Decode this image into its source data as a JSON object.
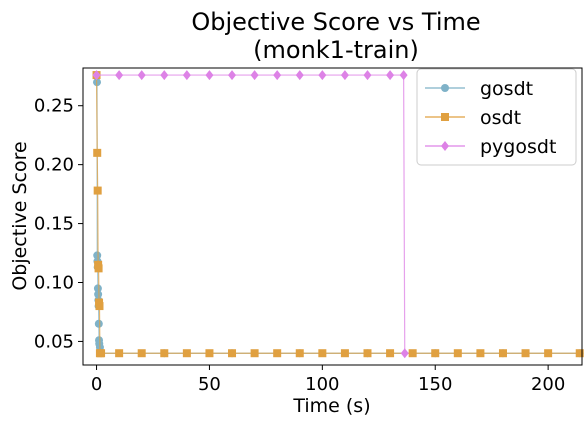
{
  "chart_data": {
    "type": "line",
    "title": [
      "Objective Score vs Time",
      "(monk1-train)"
    ],
    "xlabel": "Time (s)",
    "ylabel": "Objective Score",
    "xlim": [
      -6,
      215
    ],
    "ylim": [
      0.03,
      0.282
    ],
    "xticks": [
      0,
      50,
      100,
      150,
      200
    ],
    "yticks": [
      0.05,
      0.1,
      0.15,
      0.2,
      0.25
    ],
    "grid": false,
    "legend_position": "top-right",
    "series": [
      {
        "name": "gosdt",
        "color": "#7fb2c8",
        "marker": "circle",
        "x": [
          0,
          0.2,
          0.3,
          0.4,
          0.5,
          0.6,
          0.7,
          0.8,
          0.9,
          1.0,
          1.1,
          1.2,
          1.5,
          2.0,
          30,
          60,
          90,
          120,
          150,
          180,
          214
        ],
        "y": [
          0.276,
          0.27,
          0.123,
          0.118,
          0.113,
          0.095,
          0.09,
          0.085,
          0.08,
          0.065,
          0.051,
          0.048,
          0.045,
          0.04,
          0.04,
          0.04,
          0.04,
          0.04,
          0.04,
          0.04,
          0.04
        ]
      },
      {
        "name": "osdt",
        "color": "#e0a040",
        "marker": "square",
        "x": [
          0,
          0.3,
          0.5,
          0.7,
          0.9,
          1.1,
          1.3,
          1.5,
          2,
          10,
          20,
          30,
          40,
          50,
          60,
          70,
          80,
          90,
          100,
          110,
          120,
          130,
          140,
          150,
          160,
          170,
          180,
          190,
          200,
          214
        ],
        "y": [
          0.276,
          0.21,
          0.178,
          0.115,
          0.112,
          0.083,
          0.08,
          0.04,
          0.04,
          0.04,
          0.04,
          0.04,
          0.04,
          0.04,
          0.04,
          0.04,
          0.04,
          0.04,
          0.04,
          0.04,
          0.04,
          0.04,
          0.04,
          0.04,
          0.04,
          0.04,
          0.04,
          0.04,
          0.04,
          0.04
        ]
      },
      {
        "name": "pygosdt",
        "color": "#dd82e6",
        "marker": "diamond",
        "x": [
          0,
          10,
          20,
          30,
          40,
          50,
          60,
          70,
          80,
          90,
          100,
          110,
          120,
          130,
          136,
          136.5
        ],
        "y": [
          0.276,
          0.276,
          0.276,
          0.276,
          0.276,
          0.276,
          0.276,
          0.276,
          0.276,
          0.276,
          0.276,
          0.276,
          0.276,
          0.276,
          0.276,
          0.04
        ]
      }
    ]
  }
}
